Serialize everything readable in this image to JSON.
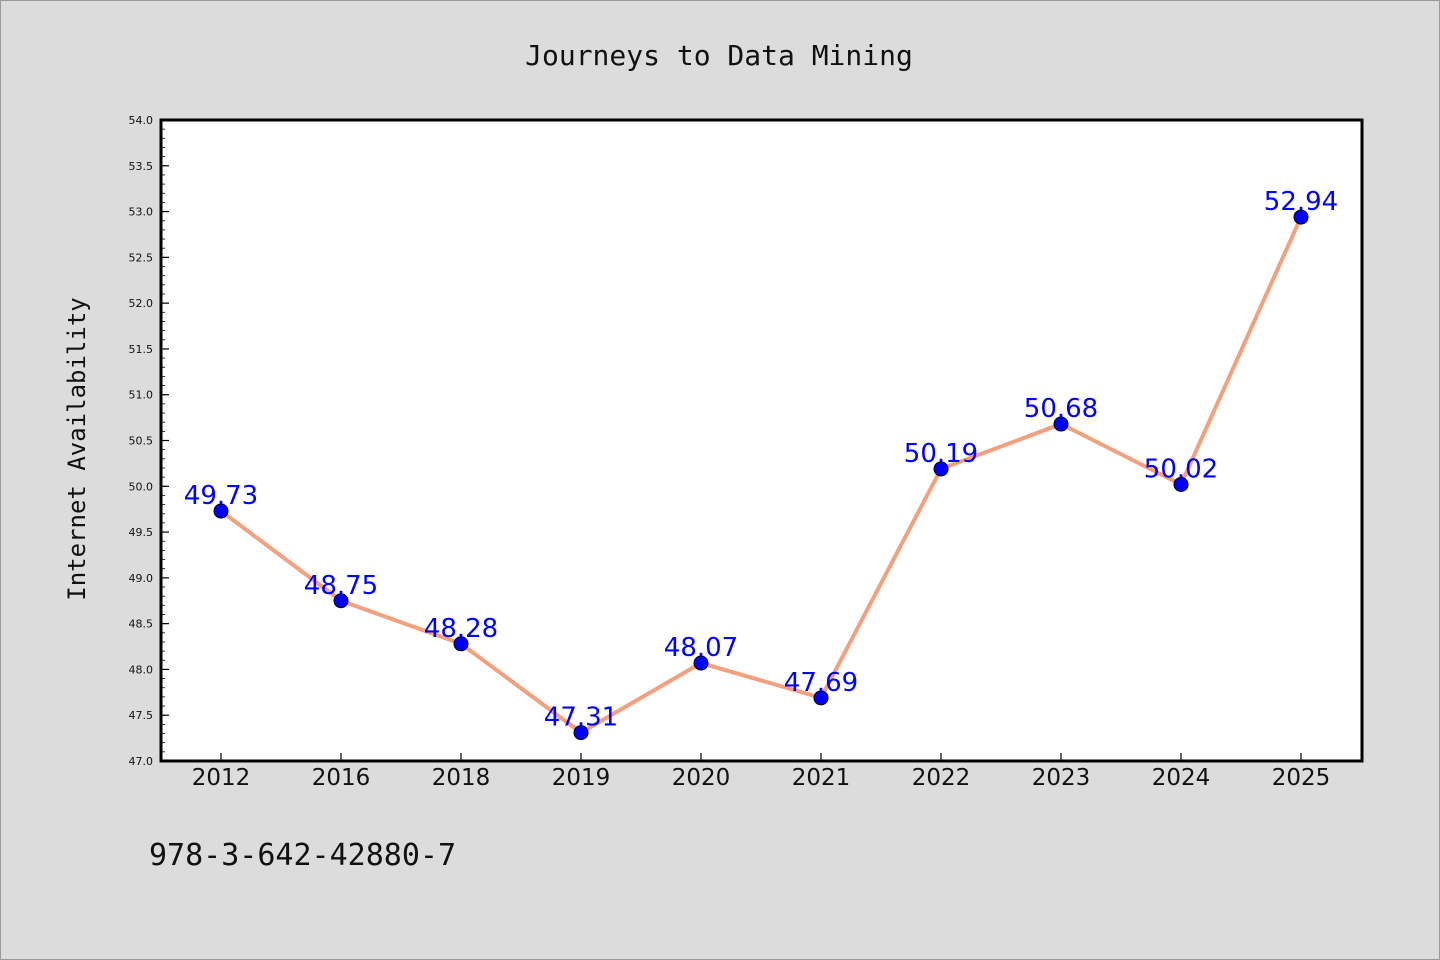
{
  "chart_data": {
    "type": "line",
    "title": "Journeys to Data Mining",
    "xlabel": "",
    "ylabel": "Internet Availability",
    "categories": [
      "2012",
      "2016",
      "2018",
      "2019",
      "2020",
      "2021",
      "2022",
      "2023",
      "2024",
      "2025"
    ],
    "series": [
      {
        "values": [
          49.73,
          48.75,
          48.28,
          47.31,
          48.07,
          47.69,
          50.19,
          50.68,
          50.02,
          52.94
        ],
        "data_labels": [
          "49.73",
          "48.75",
          "48.28",
          "47.31",
          "48.07",
          "47.69",
          "50.19",
          "50.68",
          "50.02",
          "52.94"
        ]
      }
    ],
    "ylim": [
      47.0,
      54.0
    ],
    "yticks": [
      "47.0",
      "47.5",
      "48.0",
      "48.5",
      "49.0",
      "49.5",
      "50.0",
      "50.5",
      "51.0",
      "51.5",
      "52.0",
      "52.5",
      "53.0",
      "53.5",
      "54.0"
    ],
    "grid": false,
    "legend": "none",
    "line_color": "#f4a07e",
    "marker_color": "#0000ff",
    "label_color": "#0000ff"
  },
  "annotation": "978-3-642-42880-7"
}
